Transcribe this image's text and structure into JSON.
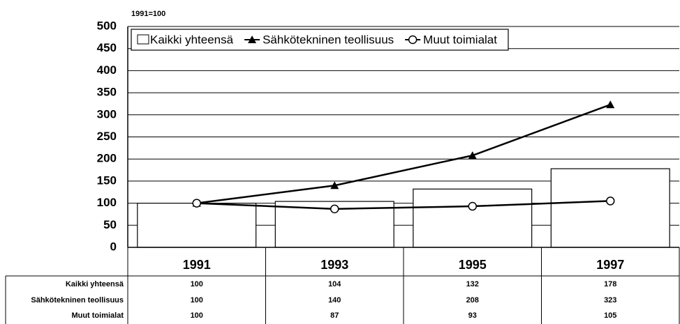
{
  "chart_data": {
    "type": "combo",
    "subtitle": "1991=100",
    "categories": [
      "1991",
      "1993",
      "1995",
      "1997"
    ],
    "series": [
      {
        "name": "Kaikki yhteensä",
        "type": "bar",
        "color": "#ffffff",
        "values": [
          100,
          104,
          132,
          178
        ]
      },
      {
        "name": "Sähkötekninen teollisuus",
        "type": "line",
        "marker": "triangle",
        "color": "#000000",
        "values": [
          100,
          140,
          208,
          323
        ]
      },
      {
        "name": "Muut toimialat",
        "type": "line",
        "marker": "circle",
        "color": "#000000",
        "values": [
          100,
          87,
          93,
          105
        ]
      }
    ],
    "ylim": [
      0,
      500
    ],
    "yticks": [
      0,
      50,
      100,
      150,
      200,
      250,
      300,
      350,
      400,
      450,
      500
    ],
    "grid": true,
    "legend": "top-left",
    "data_table": true
  }
}
